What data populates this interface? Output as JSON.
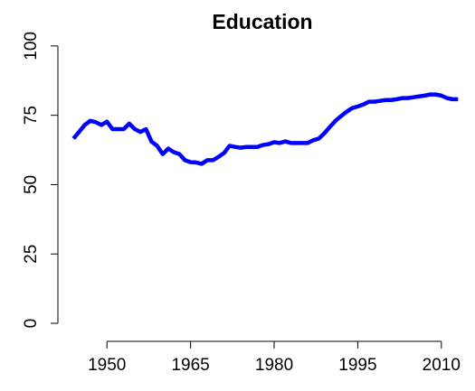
{
  "chart_data": {
    "type": "line",
    "title": "Education",
    "x": [
      1944,
      1945,
      1946,
      1947,
      1948,
      1949,
      1950,
      1951,
      1952,
      1953,
      1954,
      1955,
      1956,
      1957,
      1958,
      1959,
      1960,
      1961,
      1962,
      1963,
      1964,
      1965,
      1966,
      1967,
      1968,
      1969,
      1970,
      1971,
      1972,
      1973,
      1974,
      1975,
      1976,
      1977,
      1978,
      1979,
      1980,
      1981,
      1982,
      1983,
      1984,
      1985,
      1986,
      1987,
      1988,
      1989,
      1990,
      1991,
      1992,
      1993,
      1994,
      1995,
      1996,
      1997,
      1998,
      1999,
      2000,
      2001,
      2002,
      2003,
      2004,
      2005,
      2006,
      2007,
      2008,
      2009,
      2010,
      2011,
      2012,
      2013
    ],
    "series": [
      {
        "name": "Education",
        "color": "#0000ff",
        "values": [
          66.6,
          69,
          71.5,
          73,
          72.5,
          71.5,
          72.7,
          70,
          70,
          70,
          72,
          70,
          69,
          70,
          65.5,
          64,
          61,
          63,
          61.7,
          61,
          58.8,
          58.1,
          58,
          57.5,
          58.8,
          58.8,
          60,
          61.4,
          64,
          63.6,
          63.3,
          63.6,
          63.6,
          63.6,
          64.3,
          64.6,
          65.3,
          65,
          65.6,
          65,
          65,
          65,
          65,
          66,
          66.6,
          68.5,
          70.8,
          73,
          74.7,
          76.3,
          77.6,
          78.2,
          78.9,
          79.9,
          79.9,
          80.2,
          80.5,
          80.5,
          80.8,
          81.2,
          81.2,
          81.5,
          81.8,
          82.1,
          82.5,
          82.5,
          82.1,
          81.2,
          80.8,
          80.8
        ]
      }
    ],
    "xlim": [
      1941.2,
      2013.6
    ],
    "xticks": [
      1950,
      1965,
      1980,
      1995,
      2010
    ],
    "ylim": [
      -6.5,
      106.8
    ],
    "yticks": [
      0,
      25,
      50,
      75,
      100
    ]
  }
}
